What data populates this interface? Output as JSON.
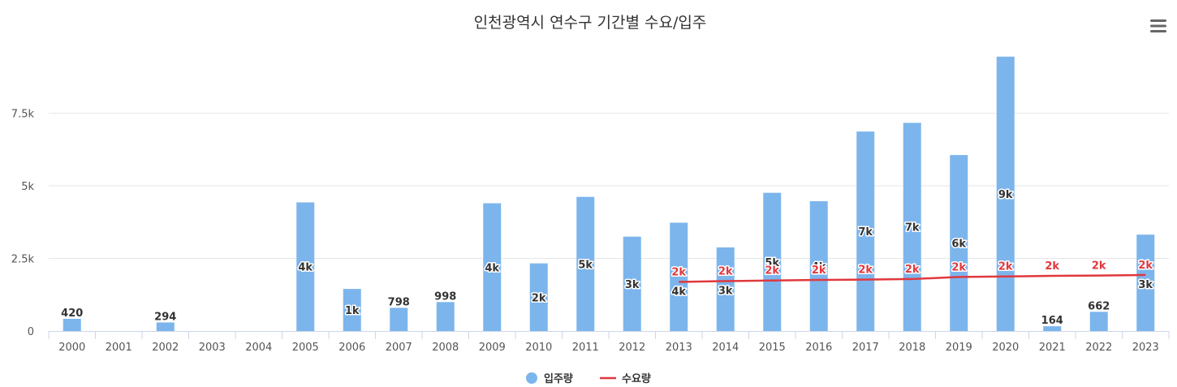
{
  "chart_data": {
    "type": "bar",
    "title": "인천광역시 연수구 기간별 수요/입주",
    "xlabel": "",
    "ylabel": "",
    "ylim": [
      0,
      9500
    ],
    "y_ticks": [
      0,
      2500,
      5000,
      7500
    ],
    "y_tick_labels": [
      "0",
      "2.5k",
      "5k",
      "7.5k"
    ],
    "grid": true,
    "legend_position": "bottom-center",
    "categories": [
      "2000",
      "2001",
      "2002",
      "2003",
      "2004",
      "2005",
      "2006",
      "2007",
      "2008",
      "2009",
      "2010",
      "2011",
      "2012",
      "2013",
      "2014",
      "2015",
      "2016",
      "2017",
      "2018",
      "2019",
      "2020",
      "2021",
      "2022",
      "2023"
    ],
    "series": [
      {
        "name": "입주량",
        "type": "bar",
        "color": "#7cb5ec",
        "values": [
          420,
          0,
          294,
          0,
          0,
          4430,
          1450,
          798,
          998,
          4400,
          2330,
          4620,
          3250,
          3730,
          2880,
          4760,
          4470,
          6870,
          7170,
          6060,
          9450,
          164,
          662,
          3320
        ],
        "labels": [
          "420",
          "",
          "294",
          "",
          "",
          "4k",
          "1k",
          "798",
          "998",
          "4k",
          "2k",
          "5k",
          "3k",
          "4k",
          "3k",
          "5k",
          "4k",
          "7k",
          "7k",
          "6k",
          "9k",
          "164",
          "662",
          "3k"
        ]
      },
      {
        "name": "수요량",
        "type": "line",
        "color": "#e0383e",
        "values": [
          null,
          null,
          null,
          null,
          null,
          null,
          null,
          null,
          null,
          null,
          null,
          null,
          null,
          1690,
          1720,
          1740,
          1760,
          1770,
          1790,
          1860,
          1880,
          1900,
          1910,
          1930
        ],
        "labels": [
          "",
          "",
          "",
          "",
          "",
          "",
          "",
          "",
          "",
          "",
          "",
          "",
          "",
          "2k",
          "2k",
          "2k",
          "2k",
          "2k",
          "2k",
          "2k",
          "2k",
          "2k",
          "2k",
          "2k"
        ]
      }
    ]
  },
  "toolbar": {
    "menu_icon": "hamburger-menu-icon"
  }
}
